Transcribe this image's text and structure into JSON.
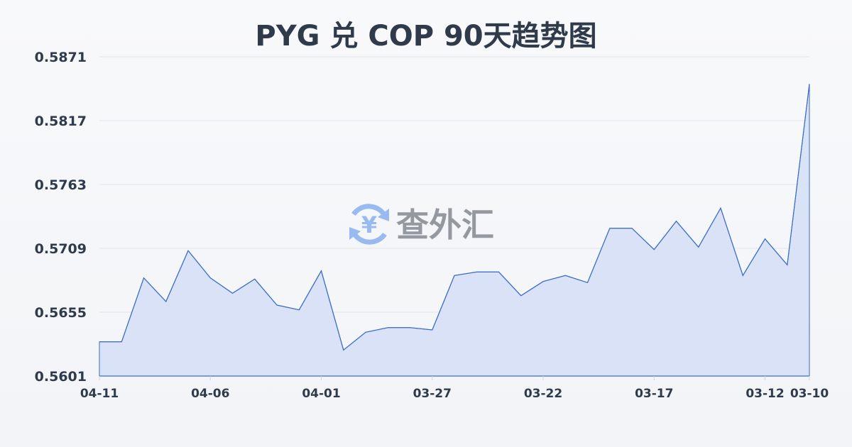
{
  "chart_data": {
    "type": "area",
    "title": "PYG 兑 COP 90天趋势图",
    "xlabel": "",
    "ylabel": "",
    "ylim": [
      0.5601,
      0.5871
    ],
    "y_ticks": [
      "0.5871",
      "0.5817",
      "0.5763",
      "0.5709",
      "0.5655",
      "0.5601"
    ],
    "y_tick_values": [
      0.5871,
      0.5817,
      0.5763,
      0.5709,
      0.5655,
      0.5601
    ],
    "x_ticks": [
      "04-11",
      "04-06",
      "04-01",
      "03-27",
      "03-22",
      "03-17",
      "03-12",
      "03-10"
    ],
    "x_tick_index": [
      0,
      5,
      10,
      15,
      20,
      25,
      30,
      32
    ],
    "x": [
      "04-11",
      "04-10",
      "04-09",
      "04-08",
      "04-07",
      "04-06",
      "04-05",
      "04-04",
      "04-03",
      "04-02",
      "04-01",
      "03-31",
      "03-30",
      "03-29",
      "03-28",
      "03-27",
      "03-26",
      "03-25",
      "03-24",
      "03-23",
      "03-22",
      "03-21",
      "03-20",
      "03-19",
      "03-18",
      "03-17",
      "03-16",
      "03-15",
      "03-14",
      "03-13",
      "03-12",
      "03-11",
      "03-10"
    ],
    "values": [
      0.563,
      0.563,
      0.5684,
      0.5664,
      0.5707,
      0.5684,
      0.5671,
      0.5683,
      0.5661,
      0.5657,
      0.569,
      0.5623,
      0.5638,
      0.5642,
      0.5642,
      0.564,
      0.5686,
      0.5689,
      0.5689,
      0.5669,
      0.5681,
      0.5686,
      0.568,
      0.5726,
      0.5726,
      0.5708,
      0.5732,
      0.571,
      0.5743,
      0.5686,
      0.5717,
      0.5695,
      0.5848
    ],
    "grid": true,
    "line_color": "#3a6bc9",
    "fill_color": "#d6e0f5"
  },
  "watermark": {
    "text": "查外汇",
    "icon": "yen-exchange-icon",
    "icon_color": "#8fb4f0"
  }
}
